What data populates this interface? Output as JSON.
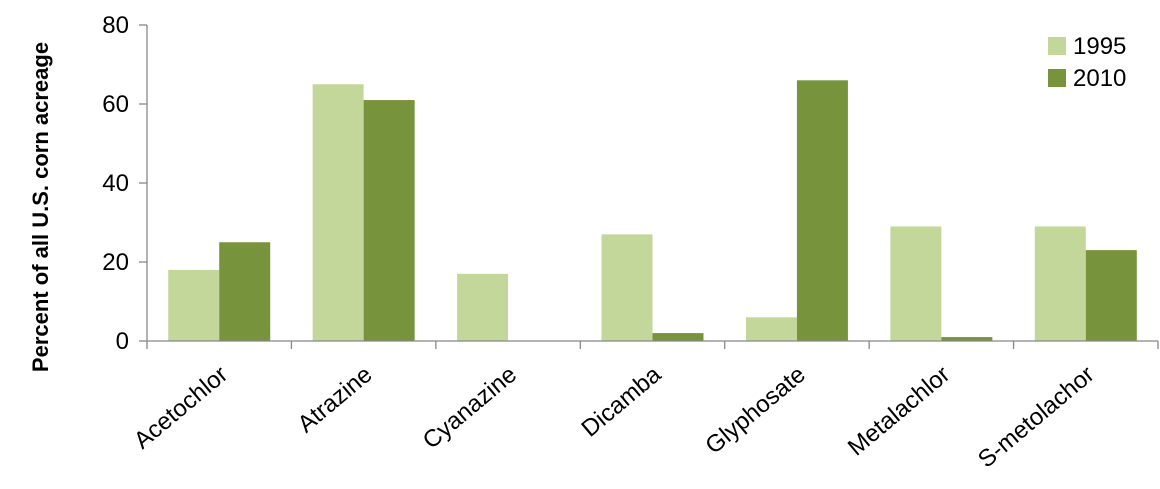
{
  "chart_data": {
    "type": "bar",
    "title": "",
    "xlabel": "",
    "ylabel": "Percent of all U.S. corn acreage",
    "ylim": [
      0,
      80
    ],
    "yticks": [
      0,
      20,
      40,
      60,
      80
    ],
    "grid": false,
    "legend_position": "top-right",
    "categories": [
      "Acetochlor",
      "Atrazine",
      "Cyanazine",
      "Dicamba",
      "Glyphosate",
      "Metalachlor",
      "S-metolachor"
    ],
    "series": [
      {
        "name": "1995",
        "color": "#c4d79b",
        "values": [
          18,
          65,
          17,
          27,
          6,
          29,
          29
        ]
      },
      {
        "name": "2010",
        "color": "#77933c",
        "values": [
          25,
          61,
          0,
          2,
          66,
          1,
          23
        ]
      }
    ]
  }
}
